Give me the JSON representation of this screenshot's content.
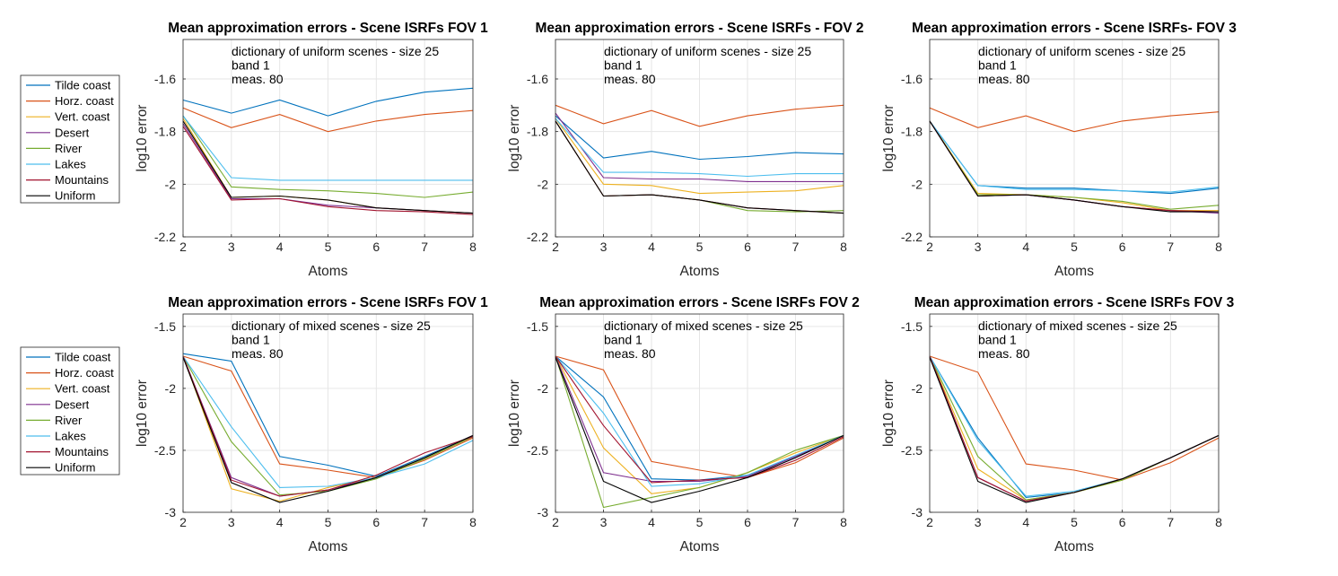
{
  "chart_data": [
    {
      "type": "line",
      "title": "Mean approximation errors - Scene ISRFs FOV 1",
      "annotation": [
        "dictionary of uniform scenes - size 25",
        "band 1",
        "meas. 80"
      ],
      "xlabel": "Atoms",
      "ylabel": "log10 error",
      "x": [
        2,
        3,
        4,
        5,
        6,
        7,
        8
      ],
      "xlim": [
        2,
        8
      ],
      "ylim": [
        -2.2,
        -1.45
      ],
      "yticks": [
        -2.2,
        -2,
        -1.8,
        -1.6
      ],
      "ytick_labels": [
        "-2.2",
        "-2",
        "-1.8",
        "-1.6"
      ],
      "grid": true,
      "series": [
        {
          "name": "Tilde coast",
          "values": [
            -1.68,
            -1.73,
            -1.68,
            -1.74,
            -1.685,
            -1.65,
            -1.635
          ]
        },
        {
          "name": "Horz. coast",
          "values": [
            -1.71,
            -1.785,
            -1.735,
            -1.8,
            -1.76,
            -1.735,
            -1.72
          ]
        },
        {
          "name": "Vert. coast",
          "values": [
            -1.75,
            -2.05,
            -2.045,
            -2.06,
            -2.09,
            -2.1,
            -2.11
          ]
        },
        {
          "name": "Desert",
          "values": [
            -1.77,
            -2.055,
            -2.055,
            -2.08,
            -2.09,
            -2.1,
            -2.11
          ]
        },
        {
          "name": "River",
          "values": [
            -1.74,
            -2.01,
            -2.02,
            -2.025,
            -2.035,
            -2.05,
            -2.03
          ]
        },
        {
          "name": "Lakes",
          "values": [
            -1.74,
            -1.975,
            -1.985,
            -1.985,
            -1.985,
            -1.985,
            -1.985
          ]
        },
        {
          "name": "Mountains",
          "values": [
            -1.78,
            -2.06,
            -2.055,
            -2.085,
            -2.1,
            -2.105,
            -2.115
          ]
        },
        {
          "name": "Uniform",
          "values": [
            -1.76,
            -2.05,
            -2.045,
            -2.06,
            -2.09,
            -2.1,
            -2.11
          ]
        }
      ]
    },
    {
      "type": "line",
      "title": "Mean approximation errors - Scene ISRFs - FOV 2",
      "annotation": [
        "dictionary of uniform scenes - size 25",
        "band 1",
        "meas. 80"
      ],
      "xlabel": "Atoms",
      "ylabel": "log10 error",
      "x": [
        2,
        3,
        4,
        5,
        6,
        7,
        8
      ],
      "xlim": [
        2,
        8
      ],
      "ylim": [
        -2.2,
        -1.45
      ],
      "yticks": [
        -2.2,
        -2,
        -1.8,
        -1.6
      ],
      "ytick_labels": [
        "-2.2",
        "-2",
        "-1.8",
        "-1.6"
      ],
      "grid": true,
      "series": [
        {
          "name": "Tilde coast",
          "values": [
            -1.74,
            -1.9,
            -1.875,
            -1.905,
            -1.895,
            -1.88,
            -1.885
          ]
        },
        {
          "name": "Horz. coast",
          "values": [
            -1.7,
            -1.77,
            -1.72,
            -1.78,
            -1.74,
            -1.715,
            -1.7
          ]
        },
        {
          "name": "Vert. coast",
          "values": [
            -1.75,
            -2.0,
            -2.005,
            -2.035,
            -2.03,
            -2.025,
            -2.005
          ]
        },
        {
          "name": "Desert",
          "values": [
            -1.73,
            -1.975,
            -1.98,
            -1.98,
            -1.99,
            -1.99,
            -1.99
          ]
        },
        {
          "name": "River",
          "values": [
            -1.76,
            -2.045,
            -2.04,
            -2.06,
            -2.1,
            -2.105,
            -2.1
          ]
        },
        {
          "name": "Lakes",
          "values": [
            -1.75,
            -1.955,
            -1.955,
            -1.96,
            -1.97,
            -1.96,
            -1.96
          ]
        },
        {
          "name": "Mountains",
          "values": [
            -1.76,
            -2.045,
            -2.04,
            -2.06,
            -2.09,
            -2.1,
            -2.11
          ]
        },
        {
          "name": "Uniform",
          "values": [
            -1.76,
            -2.045,
            -2.04,
            -2.06,
            -2.09,
            -2.1,
            -2.11
          ]
        }
      ]
    },
    {
      "type": "line",
      "title": "Mean approximation errors - Scene ISRFs- FOV 3",
      "annotation": [
        "dictionary of uniform scenes - size 25",
        "band 1",
        "meas. 80"
      ],
      "xlabel": "Atoms",
      "ylabel": "log10 error",
      "x": [
        2,
        3,
        4,
        5,
        6,
        7,
        8
      ],
      "xlim": [
        2,
        8
      ],
      "ylim": [
        -2.2,
        -1.45
      ],
      "yticks": [
        -2.2,
        -2,
        -1.8,
        -1.6
      ],
      "ytick_labels": [
        "-2.2",
        "-2",
        "-1.8",
        "-1.6"
      ],
      "grid": true,
      "series": [
        {
          "name": "Tilde coast",
          "values": [
            -1.76,
            -2.005,
            -2.015,
            -2.015,
            -2.025,
            -2.035,
            -2.015
          ]
        },
        {
          "name": "Horz. coast",
          "values": [
            -1.71,
            -1.785,
            -1.74,
            -1.8,
            -1.76,
            -1.74,
            -1.725
          ]
        },
        {
          "name": "Vert. coast",
          "values": [
            -1.76,
            -2.035,
            -2.04,
            -2.05,
            -2.07,
            -2.1,
            -2.1
          ]
        },
        {
          "name": "Desert",
          "values": [
            -1.76,
            -2.045,
            -2.04,
            -2.06,
            -2.085,
            -2.1,
            -2.11
          ]
        },
        {
          "name": "River",
          "values": [
            -1.76,
            -2.04,
            -2.04,
            -2.05,
            -2.065,
            -2.095,
            -2.08
          ]
        },
        {
          "name": "Lakes",
          "values": [
            -1.76,
            -2.005,
            -2.02,
            -2.02,
            -2.025,
            -2.03,
            -2.01
          ]
        },
        {
          "name": "Mountains",
          "values": [
            -1.76,
            -2.045,
            -2.04,
            -2.06,
            -2.085,
            -2.1,
            -2.105
          ]
        },
        {
          "name": "Uniform",
          "values": [
            -1.76,
            -2.045,
            -2.04,
            -2.06,
            -2.085,
            -2.105,
            -2.105
          ]
        }
      ]
    },
    {
      "type": "line",
      "title": "Mean approximation errors - Scene ISRFs FOV 1",
      "annotation": [
        "dictionary of mixed scenes - size 25",
        "band 1",
        "meas. 80"
      ],
      "xlabel": "Atoms",
      "ylabel": "log10 error",
      "x": [
        2,
        3,
        4,
        5,
        6,
        7,
        8
      ],
      "xlim": [
        2,
        8
      ],
      "ylim": [
        -3,
        -1.4
      ],
      "yticks": [
        -3,
        -2.5,
        -2,
        -1.5
      ],
      "ytick_labels": [
        "-3",
        "-2.5",
        "-2",
        "-1.5"
      ],
      "grid": true,
      "series": [
        {
          "name": "Tilde coast",
          "values": [
            -1.72,
            -1.78,
            -2.55,
            -2.62,
            -2.71,
            -2.55,
            -2.38
          ]
        },
        {
          "name": "Horz. coast",
          "values": [
            -1.74,
            -1.86,
            -2.61,
            -2.66,
            -2.72,
            -2.58,
            -2.4
          ]
        },
        {
          "name": "Vert. coast",
          "values": [
            -1.74,
            -2.81,
            -2.91,
            -2.8,
            -2.72,
            -2.56,
            -2.38
          ]
        },
        {
          "name": "Desert",
          "values": [
            -1.74,
            -2.72,
            -2.87,
            -2.82,
            -2.72,
            -2.56,
            -2.38
          ]
        },
        {
          "name": "River",
          "values": [
            -1.74,
            -2.43,
            -2.86,
            -2.83,
            -2.73,
            -2.57,
            -2.39
          ]
        },
        {
          "name": "Lakes",
          "values": [
            -1.74,
            -2.31,
            -2.8,
            -2.79,
            -2.72,
            -2.61,
            -2.42
          ]
        },
        {
          "name": "Mountains",
          "values": [
            -1.74,
            -2.74,
            -2.87,
            -2.82,
            -2.7,
            -2.52,
            -2.39
          ]
        },
        {
          "name": "Uniform",
          "values": [
            -1.75,
            -2.76,
            -2.92,
            -2.83,
            -2.72,
            -2.56,
            -2.38
          ]
        }
      ]
    },
    {
      "type": "line",
      "title": "Mean approximation errors - Scene ISRFs FOV 2",
      "annotation": [
        "dictionary of mixed scenes - size 25",
        "band 1",
        "meas. 80"
      ],
      "xlabel": "Atoms",
      "ylabel": "log10 error",
      "x": [
        2,
        3,
        4,
        5,
        6,
        7,
        8
      ],
      "xlim": [
        2,
        8
      ],
      "ylim": [
        -3,
        -1.4
      ],
      "yticks": [
        -3,
        -2.5,
        -2,
        -1.5
      ],
      "ytick_labels": [
        "-3",
        "-2.5",
        "-2",
        "-1.5"
      ],
      "grid": true,
      "series": [
        {
          "name": "Tilde coast",
          "values": [
            -1.74,
            -2.07,
            -2.73,
            -2.74,
            -2.7,
            -2.55,
            -2.38
          ]
        },
        {
          "name": "Horz. coast",
          "values": [
            -1.74,
            -1.85,
            -2.59,
            -2.66,
            -2.72,
            -2.6,
            -2.4
          ]
        },
        {
          "name": "Vert. coast",
          "values": [
            -1.74,
            -2.48,
            -2.85,
            -2.8,
            -2.68,
            -2.52,
            -2.38
          ]
        },
        {
          "name": "Desert",
          "values": [
            -1.74,
            -2.68,
            -2.75,
            -2.75,
            -2.71,
            -2.55,
            -2.38
          ]
        },
        {
          "name": "River",
          "values": [
            -1.74,
            -2.96,
            -2.88,
            -2.8,
            -2.68,
            -2.5,
            -2.38
          ]
        },
        {
          "name": "Lakes",
          "values": [
            -1.74,
            -2.2,
            -2.79,
            -2.77,
            -2.7,
            -2.54,
            -2.38
          ]
        },
        {
          "name": "Mountains",
          "values": [
            -1.74,
            -2.3,
            -2.76,
            -2.74,
            -2.72,
            -2.58,
            -2.39
          ]
        },
        {
          "name": "Uniform",
          "values": [
            -1.75,
            -2.75,
            -2.92,
            -2.83,
            -2.72,
            -2.56,
            -2.38
          ]
        }
      ]
    },
    {
      "type": "line",
      "title": "Mean approximation errors - Scene ISRFs FOV 3",
      "annotation": [
        "dictionary of mixed scenes - size 25",
        "band 1",
        "meas. 80"
      ],
      "xlabel": "Atoms",
      "ylabel": "log10 error",
      "x": [
        2,
        3,
        4,
        5,
        6,
        7,
        8
      ],
      "xlim": [
        2,
        8
      ],
      "ylim": [
        -3,
        -1.4
      ],
      "yticks": [
        -3,
        -2.5,
        -2,
        -1.5
      ],
      "ytick_labels": [
        "-3",
        "-2.5",
        "-2",
        "-1.5"
      ],
      "grid": true,
      "series": [
        {
          "name": "Tilde coast",
          "values": [
            -1.74,
            -2.4,
            -2.88,
            -2.84,
            -2.73,
            -2.56,
            -2.38
          ]
        },
        {
          "name": "Horz. coast",
          "values": [
            -1.74,
            -1.87,
            -2.61,
            -2.66,
            -2.74,
            -2.6,
            -2.4
          ]
        },
        {
          "name": "Vert. coast",
          "values": [
            -1.74,
            -2.65,
            -2.9,
            -2.84,
            -2.74,
            -2.56,
            -2.38
          ]
        },
        {
          "name": "Desert",
          "values": [
            -1.74,
            -2.72,
            -2.91,
            -2.84,
            -2.73,
            -2.56,
            -2.38
          ]
        },
        {
          "name": "River",
          "values": [
            -1.74,
            -2.55,
            -2.9,
            -2.84,
            -2.74,
            -2.56,
            -2.38
          ]
        },
        {
          "name": "Lakes",
          "values": [
            -1.74,
            -2.42,
            -2.87,
            -2.83,
            -2.73,
            -2.56,
            -2.38
          ]
        },
        {
          "name": "Mountains",
          "values": [
            -1.74,
            -2.72,
            -2.91,
            -2.84,
            -2.73,
            -2.56,
            -2.38
          ]
        },
        {
          "name": "Uniform",
          "values": [
            -1.75,
            -2.75,
            -2.92,
            -2.84,
            -2.73,
            -2.56,
            -2.38
          ]
        }
      ]
    }
  ],
  "legend_top": [
    "Tilde coast",
    "Horz. coast",
    "Vert. coast",
    "Desert",
    "River",
    "Lakes",
    "Mountains",
    "Uniform"
  ],
  "legend_bottom": [
    "Tilde coast",
    "Horz. coast",
    "Vert. coast",
    "Desert",
    "River",
    "Lakes",
    "Mountains",
    "Uniform"
  ],
  "colors": {
    "series": [
      "#0072BD",
      "#D95319",
      "#EDB120",
      "#7E2F8E",
      "#77AC30",
      "#4DBEEE",
      "#A2142F",
      "#000000"
    ],
    "axis": "#262626",
    "grid": "#e6e6e6"
  }
}
